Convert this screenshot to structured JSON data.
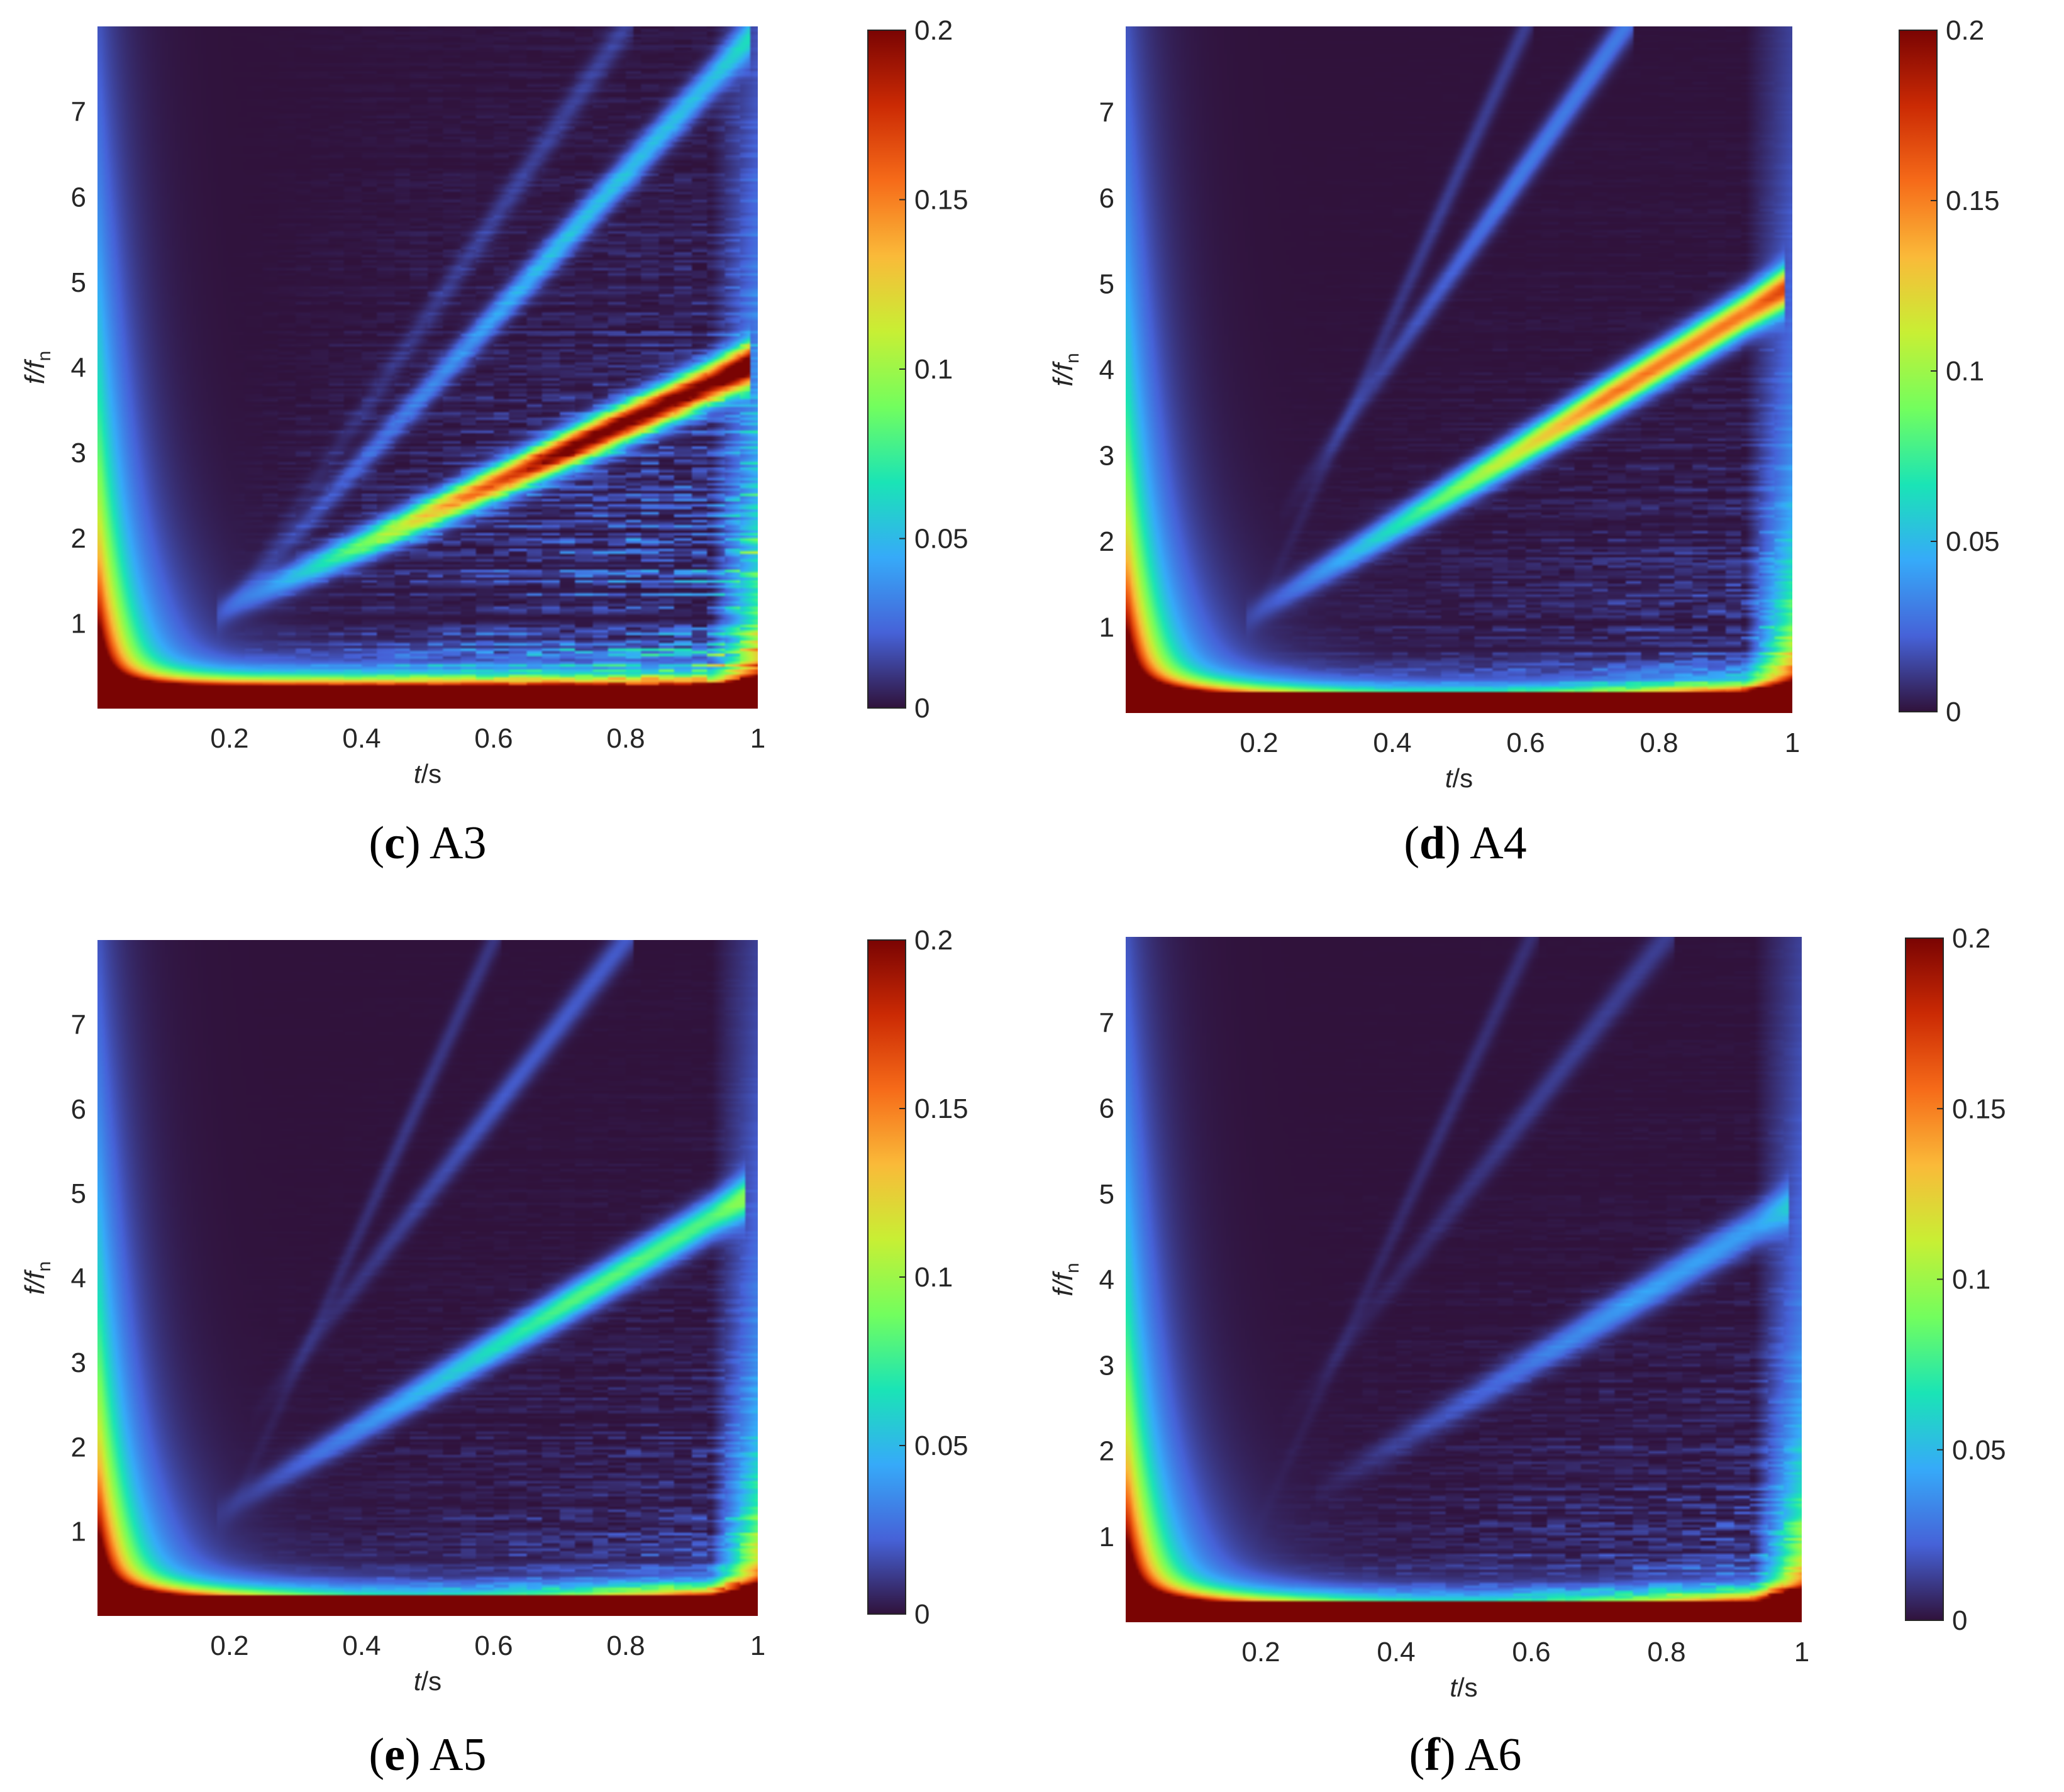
{
  "figure": {
    "panels": [
      {
        "letter": "c",
        "name": "A3"
      },
      {
        "letter": "d",
        "name": "A4"
      },
      {
        "letter": "e",
        "name": "A5"
      },
      {
        "letter": "f",
        "name": "A6"
      }
    ]
  },
  "colormap": [
    "#30123b",
    "#4662d8",
    "#36aaf9",
    "#1ae4b6",
    "#72fe5e",
    "#c8ef34",
    "#faba39",
    "#f66b19",
    "#cb2a04",
    "#7a0403"
  ],
  "chart_data": [
    {
      "type": "heatmap",
      "panel": "c",
      "title": "A3",
      "xlabel": "t/s",
      "ylabel": "f/fn",
      "xlim": [
        0,
        1
      ],
      "ylim": [
        0,
        8
      ],
      "xticks": [
        0.2,
        0.4,
        0.6,
        0.8,
        1
      ],
      "xtick_labels": [
        "0.2",
        "0.4",
        "0.6",
        "0.8",
        "1"
      ],
      "yticks": [
        1,
        2,
        3,
        4,
        5,
        6,
        7
      ],
      "colorbar": {
        "range": [
          0,
          0.2
        ],
        "ticks": [
          0,
          0.05,
          0.1,
          0.15,
          0.2
        ],
        "labels": [
          "0",
          "0.05",
          "0.1",
          "0.15",
          "0.2"
        ]
      },
      "ridges": [
        {
          "from": [
            0.2,
            1.2
          ],
          "to": [
            0.98,
            4.0
          ],
          "amplitude": 0.2
        },
        {
          "from": [
            0.2,
            1.2
          ],
          "to": [
            0.98,
            7.8
          ],
          "amplitude": 0.05
        },
        {
          "from": [
            0.2,
            1.2
          ],
          "to": [
            0.8,
            8.0
          ],
          "amplitude": 0.012
        }
      ]
    },
    {
      "type": "heatmap",
      "panel": "d",
      "title": "A4",
      "xlabel": "t/s",
      "ylabel": "f/fn",
      "xlim": [
        0,
        1
      ],
      "ylim": [
        0,
        8
      ],
      "xticks": [
        0.2,
        0.4,
        0.6,
        0.8,
        1
      ],
      "xtick_labels": [
        "0.2",
        "0.4",
        "0.6",
        "0.8",
        "1"
      ],
      "yticks": [
        1,
        2,
        3,
        4,
        5,
        6,
        7
      ],
      "colorbar": {
        "range": [
          0,
          0.2
        ],
        "ticks": [
          0,
          0.05,
          0.1,
          0.15,
          0.2
        ],
        "labels": [
          "0",
          "0.05",
          "0.1",
          "0.15",
          "0.2"
        ]
      },
      "ridges": [
        {
          "from": [
            0.2,
            1.2
          ],
          "to": [
            0.98,
            4.9
          ],
          "amplitude": 0.15
        },
        {
          "from": [
            0.25,
            2.5
          ],
          "to": [
            0.75,
            8.0
          ],
          "amplitude": 0.03
        },
        {
          "from": [
            0.2,
            1.2
          ],
          "to": [
            0.6,
            8.0
          ],
          "amplitude": 0.012
        }
      ]
    },
    {
      "type": "heatmap",
      "panel": "e",
      "title": "A5",
      "xlabel": "t/s",
      "ylabel": "f/fn",
      "xlim": [
        0,
        1
      ],
      "ylim": [
        0,
        8
      ],
      "xticks": [
        0.2,
        0.4,
        0.6,
        0.8,
        1
      ],
      "xtick_labels": [
        "0.2",
        "0.4",
        "0.6",
        "0.8",
        "1"
      ],
      "yticks": [
        1,
        2,
        3,
        4,
        5,
        6,
        7
      ],
      "colorbar": {
        "range": [
          0,
          0.2
        ],
        "ticks": [
          0,
          0.05,
          0.1,
          0.15,
          0.2
        ],
        "labels": [
          "0",
          "0.05",
          "0.1",
          "0.15",
          "0.2"
        ]
      },
      "ridges": [
        {
          "from": [
            0.2,
            1.3
          ],
          "to": [
            0.97,
            4.9
          ],
          "amplitude": 0.08
        },
        {
          "from": [
            0.25,
            2.5
          ],
          "to": [
            0.8,
            8.0
          ],
          "amplitude": 0.02
        },
        {
          "from": [
            0.2,
            1.2
          ],
          "to": [
            0.6,
            8.0
          ],
          "amplitude": 0.01
        }
      ]
    },
    {
      "type": "heatmap",
      "panel": "f",
      "title": "A6",
      "xlabel": "t/s",
      "ylabel": "f/fn",
      "xlim": [
        0,
        1
      ],
      "ylim": [
        0,
        8
      ],
      "xticks": [
        0.2,
        0.4,
        0.6,
        0.8,
        1
      ],
      "xtick_labels": [
        "0.2",
        "0.4",
        "0.6",
        "0.8",
        "1"
      ],
      "yticks": [
        1,
        2,
        3,
        4,
        5,
        6,
        7
      ],
      "colorbar": {
        "range": [
          0,
          0.2
        ],
        "ticks": [
          0,
          0.05,
          0.1,
          0.15,
          0.2
        ],
        "labels": [
          "0",
          "0.05",
          "0.1",
          "0.15",
          "0.2"
        ]
      },
      "ridges": [
        {
          "from": [
            0.3,
            1.6
          ],
          "to": [
            0.97,
            4.8
          ],
          "amplitude": 0.04
        },
        {
          "from": [
            0.25,
            2.5
          ],
          "to": [
            0.8,
            8.0
          ],
          "amplitude": 0.012
        },
        {
          "from": [
            0.2,
            1.2
          ],
          "to": [
            0.6,
            8.0
          ],
          "amplitude": 0.008
        }
      ]
    }
  ]
}
